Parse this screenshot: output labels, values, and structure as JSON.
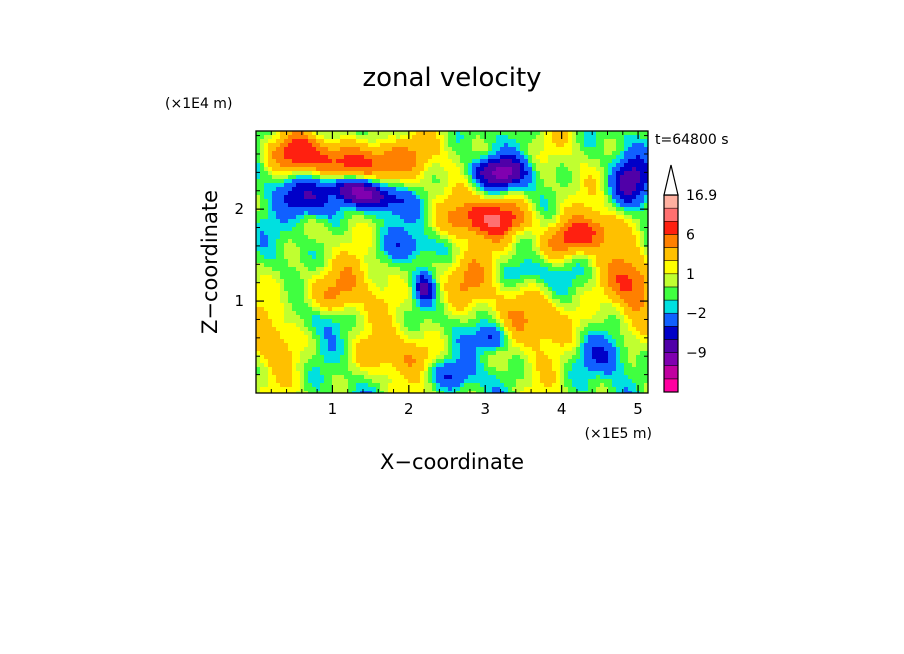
{
  "chart_data": {
    "type": "heatmap",
    "title": "zonal velocity",
    "xlabel": "X−coordinate",
    "ylabel": "Z−coordinate",
    "x_unit": "(×1E5 m)",
    "y_unit": "(×1E4 m)",
    "time_label": "t=64800 s",
    "xlim": [
      0,
      5.13
    ],
    "ylim": [
      0,
      2.85
    ],
    "x_ticks": [
      {
        "value": 1,
        "label": "1"
      },
      {
        "value": 2,
        "label": "2"
      },
      {
        "value": 3,
        "label": "3"
      },
      {
        "value": 4,
        "label": "4"
      },
      {
        "value": 5,
        "label": "5"
      }
    ],
    "y_ticks": [
      {
        "value": 1,
        "label": "1"
      },
      {
        "value": 2,
        "label": "2"
      }
    ],
    "colorbar": {
      "levels": [
        -16,
        -12,
        -9,
        -6,
        -4,
        -2,
        -1,
        0,
        1,
        2,
        4,
        6,
        9,
        12,
        16.9
      ],
      "colors": [
        "#ff00a0",
        "#c000a0",
        "#8000b0",
        "#5000a8",
        "#0000c8",
        "#1060ff",
        "#00e0e0",
        "#40ff40",
        "#c0ff30",
        "#ffff00",
        "#ffc000",
        "#ff8000",
        "#ff2010",
        "#ff7070",
        "#ffb0a0"
      ],
      "labels": [
        {
          "value": 16.9,
          "label": "16.9"
        },
        {
          "value": 6,
          "label": "6"
        },
        {
          "value": 1,
          "label": "1"
        },
        {
          "value": -2,
          "label": "−2"
        },
        {
          "value": -9,
          "label": "−9"
        }
      ],
      "extend_max": true
    },
    "features": [
      {
        "x": 1.3,
        "z": 2.2,
        "u": -10,
        "sx": 0.55,
        "sz": 0.15,
        "rot": -0.2
      },
      {
        "x": 3.2,
        "z": 2.4,
        "u": -9,
        "sx": 0.35,
        "sz": 0.15,
        "rot": 0.0
      },
      {
        "x": 0.7,
        "z": 2.1,
        "u": -7,
        "sx": 0.35,
        "sz": 0.18,
        "rot": -0.3
      },
      {
        "x": 2.2,
        "z": 1.15,
        "u": -6,
        "sx": 0.12,
        "sz": 0.15,
        "rot": 0.0
      },
      {
        "x": 3.1,
        "z": 0.6,
        "u": -5,
        "sx": 0.2,
        "sz": 0.15,
        "rot": 0.0
      },
      {
        "x": 4.9,
        "z": 2.3,
        "u": -6,
        "sx": 0.25,
        "sz": 0.25,
        "rot": 0.5
      },
      {
        "x": 1.5,
        "z": 2.5,
        "u": 8,
        "sx": 0.6,
        "sz": 0.22,
        "rot": 0.1
      },
      {
        "x": 3.1,
        "z": 1.9,
        "u": 9,
        "sx": 0.5,
        "sz": 0.2,
        "rot": 0.0
      },
      {
        "x": 0.6,
        "z": 2.6,
        "u": 7,
        "sx": 0.4,
        "sz": 0.2,
        "rot": 0.0
      },
      {
        "x": 4.2,
        "z": 1.7,
        "u": 7,
        "sx": 0.5,
        "sz": 0.2,
        "rot": 0.2
      },
      {
        "x": 4.9,
        "z": 1.2,
        "u": 6,
        "sx": 0.3,
        "sz": 0.3,
        "rot": 0.0
      },
      {
        "x": 1.0,
        "z": 1.1,
        "u": 4,
        "sx": 0.5,
        "sz": 0.3,
        "rot": 0.0
      },
      {
        "x": 2.7,
        "z": 1.2,
        "u": 4,
        "sx": 0.4,
        "sz": 0.3,
        "rot": 0.0
      },
      {
        "x": 3.8,
        "z": 0.8,
        "u": 4,
        "sx": 0.5,
        "sz": 0.3,
        "rot": 0.0
      },
      {
        "x": 1.8,
        "z": 0.4,
        "u": 3,
        "sx": 0.6,
        "sz": 0.25,
        "rot": 0.0
      },
      {
        "x": 0.2,
        "z": 0.6,
        "u": 3,
        "sx": 0.3,
        "sz": 0.3,
        "rot": 0.0
      },
      {
        "x": 2.0,
        "z": 1.6,
        "u": -2,
        "sx": 0.5,
        "sz": 0.15,
        "rot": 0.0
      },
      {
        "x": 0.9,
        "z": 0.8,
        "u": -2,
        "sx": 0.3,
        "sz": 0.15,
        "rot": 0.0
      },
      {
        "x": 3.5,
        "z": 1.3,
        "u": -2,
        "sx": 0.4,
        "sz": 0.15,
        "rot": 0.0
      },
      {
        "x": 2.5,
        "z": 0.2,
        "u": -3,
        "sx": 0.4,
        "sz": 0.15,
        "rot": 0.0
      },
      {
        "x": 4.6,
        "z": 0.4,
        "u": -3,
        "sx": 0.3,
        "sz": 0.2,
        "rot": 0.0
      }
    ]
  }
}
